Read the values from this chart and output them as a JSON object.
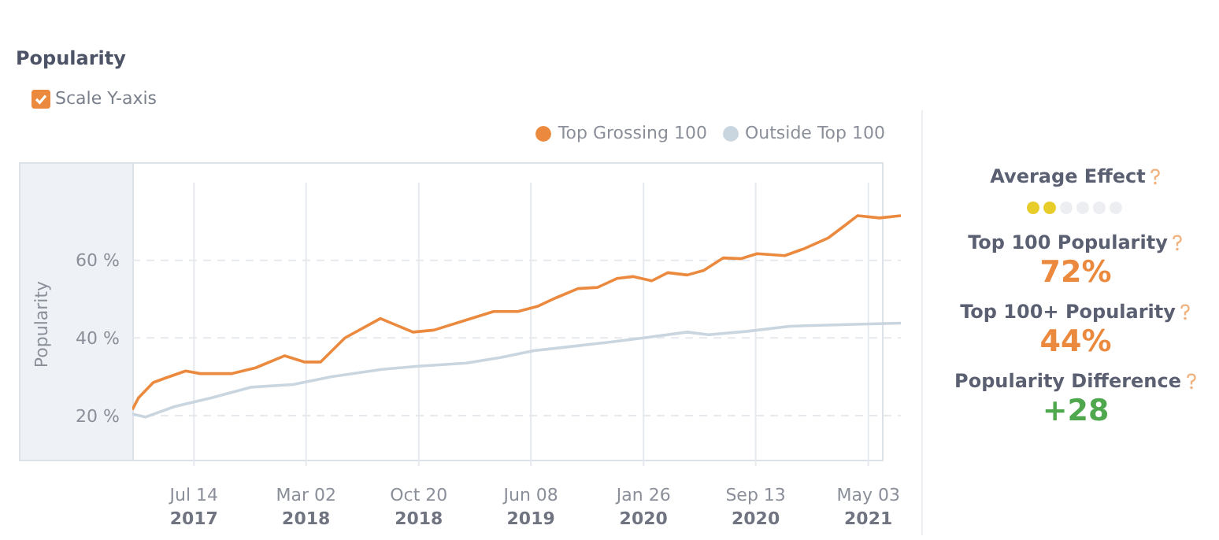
{
  "chart_data": [
    {
      "type": "line",
      "title": "Popularity",
      "ylabel": "Popularity",
      "annotations": [
        "Scale Y-axis"
      ],
      "xlim": [
        "2017-03-09",
        "2021-07-09"
      ],
      "ylim": [
        7,
        80
      ],
      "xticks": [
        {
          "value": "2017-07-14",
          "label": "Jul 14 2017"
        },
        {
          "value": "2018-03-02",
          "label": "Mar 02 2018"
        },
        {
          "value": "2018-10-20",
          "label": "Oct 20 2018"
        },
        {
          "value": "2019-06-08",
          "label": "Jun 08 2019"
        },
        {
          "value": "2020-01-26",
          "label": "Jan 26 2020"
        },
        {
          "value": "2020-09-13",
          "label": "Sep 13 2020"
        },
        {
          "value": "2021-05-03",
          "label": "May 03 2021"
        }
      ],
      "yticks": [
        {
          "value": 20,
          "label": "20 %"
        },
        {
          "value": 40,
          "label": "40 %"
        },
        {
          "value": 60,
          "label": "60 %"
        }
      ],
      "grid": true,
      "legend": "top right",
      "marker": "none",
      "line_style": "solid",
      "series": [
        {
          "name": "Top Grossing 100",
          "color": "#eb8a3e",
          "x": [
            "2017-03-09",
            "2017-03-22",
            "2017-04-21",
            "2017-05-15",
            "2017-06-27",
            "2017-07-27",
            "2017-09-29",
            "2017-11-18",
            "2018-01-17",
            "2018-02-26",
            "2018-04-01",
            "2018-05-21",
            "2018-08-02",
            "2018-10-08",
            "2018-11-20",
            "2019-01-26",
            "2019-03-23",
            "2019-05-12",
            "2019-06-21",
            "2019-07-31",
            "2019-09-13",
            "2019-10-23",
            "2019-12-02",
            "2020-01-04",
            "2020-02-12",
            "2020-03-16",
            "2020-04-25",
            "2020-05-29",
            "2020-07-08",
            "2020-08-13",
            "2020-09-16",
            "2020-11-12",
            "2020-12-22",
            "2021-02-10",
            "2021-03-16",
            "2021-04-11",
            "2021-05-26",
            "2021-07-09"
          ],
          "values": [
            21.5,
            24.6,
            28.5,
            29.6,
            31.5,
            30.8,
            30.8,
            32.3,
            35.4,
            33.8,
            33.8,
            40,
            45,
            41.5,
            42,
            44.6,
            46.8,
            46.8,
            48.1,
            50.4,
            52.7,
            53,
            55.3,
            55.8,
            54.7,
            56.8,
            56.2,
            57.4,
            60.6,
            60.4,
            61.7,
            61.2,
            63,
            65.8,
            69,
            71.5,
            70.9,
            71.5
          ]
        },
        {
          "name": "Outside Top 100",
          "color": "#c9d5df",
          "x": [
            "2017-03-09",
            "2017-04-05",
            "2017-06-04",
            "2017-08-20",
            "2017-11-08",
            "2018-02-03",
            "2018-04-24",
            "2018-08-05",
            "2018-10-18",
            "2019-01-26",
            "2019-04-08",
            "2019-06-14",
            "2019-08-24",
            "2019-11-09",
            "2020-01-26",
            "2020-04-25",
            "2020-06-08",
            "2020-08-27",
            "2020-11-22",
            "2021-04-05",
            "2021-07-09"
          ],
          "values": [
            20.4,
            19.6,
            22.3,
            24.6,
            27.3,
            28,
            30,
            31.9,
            32.7,
            33.5,
            35,
            36.7,
            37.7,
            38.8,
            40,
            41.5,
            40.8,
            41.7,
            43,
            43.5,
            43.8
          ]
        }
      ]
    },
    {
      "type": "other",
      "annotations": [
        "Average Effect",
        "Top 100 Popularity",
        "72%",
        "Top 100+ Popularity",
        "44%",
        "Popularity Difference",
        "+28"
      ]
    }
  ]
}
